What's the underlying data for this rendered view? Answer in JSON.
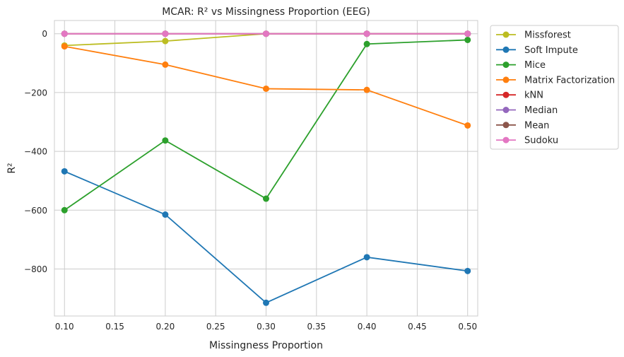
{
  "chart_data": {
    "type": "line",
    "title": "MCAR: R² vs Missingness Proportion (EEG)",
    "xlabel": "Missingness Proportion",
    "ylabel": "R²",
    "xlim": [
      0.09,
      0.51
    ],
    "ylim": [
      -960,
      45
    ],
    "xticks": [
      0.1,
      0.15,
      0.2,
      0.25,
      0.3,
      0.35,
      0.4,
      0.45,
      0.5
    ],
    "xtick_labels": [
      "0.10",
      "0.15",
      "0.20",
      "0.25",
      "0.30",
      "0.35",
      "0.40",
      "0.45",
      "0.50"
    ],
    "yticks": [
      0,
      -200,
      -400,
      -600,
      -800
    ],
    "ytick_labels": [
      "0",
      "−200",
      "−400",
      "−600",
      "−800"
    ],
    "grid": true,
    "legend_position": "outside-right",
    "x": [
      0.1,
      0.2,
      0.3,
      0.4,
      0.5
    ],
    "series": [
      {
        "name": "Missforest",
        "color": "#bcbd22",
        "values": [
          -40,
          -25,
          0,
          0,
          0
        ]
      },
      {
        "name": "Soft Impute",
        "color": "#1f77b4",
        "values": [
          -468,
          -615,
          -915,
          -760,
          -807
        ]
      },
      {
        "name": "Mice",
        "color": "#2ca02c",
        "values": [
          -600,
          -363,
          -561,
          -35,
          -21
        ]
      },
      {
        "name": "Matrix Factorization",
        "color": "#ff7f0e",
        "values": [
          -43,
          -105,
          -187,
          -191,
          -312
        ]
      },
      {
        "name": "kNN",
        "color": "#d62728",
        "values": [
          0,
          0,
          0,
          0,
          0
        ]
      },
      {
        "name": "Median",
        "color": "#9467bd",
        "values": [
          0,
          0,
          0,
          0,
          0
        ]
      },
      {
        "name": "Mean",
        "color": "#8c564b",
        "values": [
          0,
          0,
          0,
          0,
          0
        ]
      },
      {
        "name": "Sudoku",
        "color": "#e377c2",
        "values": [
          0,
          0,
          0,
          0,
          0
        ]
      }
    ]
  }
}
